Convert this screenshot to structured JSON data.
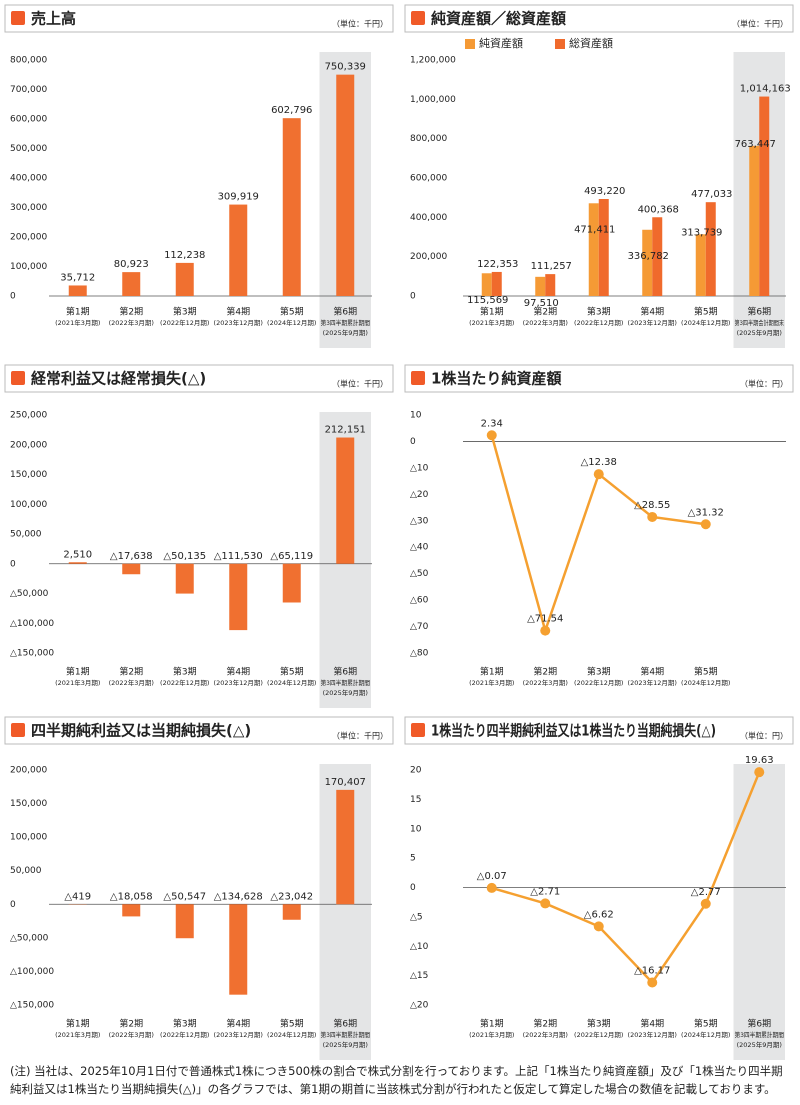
{
  "chart_data": [
    {
      "type": "bar",
      "title": "売上高",
      "unit": "（単位：千円）",
      "color": "#f07030",
      "highlight_last": true,
      "categories": [
        "第1期",
        "第2期",
        "第3期",
        "第4期",
        "第5期",
        "第6期"
      ],
      "subcategories": [
        [
          "(2021年3月期)"
        ],
        [
          "(2022年3月期)"
        ],
        [
          "(2022年12月期)"
        ],
        [
          "(2023年12月期)"
        ],
        [
          "(2024年12月期)"
        ],
        [
          "第3四半期累計期間",
          "(2025年9月期)"
        ]
      ],
      "values": [
        35712,
        80923,
        112238,
        309919,
        602796,
        750339
      ],
      "value_labels": [
        "35,712",
        "80,923",
        "112,238",
        "309,919",
        "602,796",
        "750,339"
      ],
      "ylim": [
        0,
        800000
      ],
      "yticks": [
        0,
        {
          "value": 100000,
          "label": "100,000"
        },
        {
          "value": 200000,
          "label": "200,000"
        },
        {
          "value": 300000,
          "label": "300,000"
        },
        {
          "value": 400000,
          "label": "400,000"
        },
        {
          "value": 500000,
          "label": "500,000"
        },
        {
          "value": 600000,
          "label": "600,000"
        },
        {
          "value": 700000,
          "label": "700,000"
        },
        {
          "value": 800000,
          "label": "800,000"
        }
      ]
    },
    {
      "type": "grouped_bar",
      "title": "純資産額／総資産額",
      "unit": "（単位：千円）",
      "highlight_last": true,
      "categories": [
        "第1期",
        "第2期",
        "第3期",
        "第4期",
        "第5期",
        "第6期"
      ],
      "subcategories": [
        [
          "(2021年3月期)"
        ],
        [
          "(2022年3月期)"
        ],
        [
          "(2022年12月期)"
        ],
        [
          "(2023年12月期)"
        ],
        [
          "(2024年12月期)"
        ],
        [
          "第3四半期会計期間末",
          "(2025年9月期)"
        ]
      ],
      "series": [
        {
          "name": "純資産額",
          "color": "#f59a35",
          "values": [
            115569,
            97510,
            471411,
            336782,
            313739,
            763447
          ],
          "value_labels": [
            "115,569",
            "97,510",
            "471,411",
            "336,782",
            "313,739",
            "763,447"
          ]
        },
        {
          "name": "総資産額",
          "color": "#f06a2c",
          "values": [
            122353,
            111257,
            493220,
            400368,
            477033,
            1014163
          ],
          "value_labels": [
            "122,353",
            "111,257",
            "493,220",
            "400,368",
            "477,033",
            "1,014,163"
          ]
        }
      ],
      "ylim": [
        0,
        1200000
      ],
      "yticks": [
        0,
        {
          "value": 200000,
          "label": "200,000"
        },
        {
          "value": 400000,
          "label": "400,000"
        },
        {
          "value": 600000,
          "label": "600,000"
        },
        {
          "value": 800000,
          "label": "800,000"
        },
        {
          "value": 1000000,
          "label": "1,000,000"
        },
        {
          "value": 1200000,
          "label": "1,200,000"
        }
      ]
    },
    {
      "type": "bar",
      "title": "経常利益又は経常損失(△)",
      "unit": "（単位：千円）",
      "color": "#f07030",
      "highlight_last": true,
      "categories": [
        "第1期",
        "第2期",
        "第3期",
        "第4期",
        "第5期",
        "第6期"
      ],
      "subcategories": [
        [
          "(2021年3月期)"
        ],
        [
          "(2022年3月期)"
        ],
        [
          "(2022年12月期)"
        ],
        [
          "(2023年12月期)"
        ],
        [
          "(2024年12月期)"
        ],
        [
          "第3四半期累計期間",
          "(2025年9月期)"
        ]
      ],
      "values": [
        2510,
        -17638,
        -50135,
        -111530,
        -65119,
        212151
      ],
      "value_labels": [
        "2,510",
        "△17,638",
        "△50,135",
        "△111,530",
        "△65,119",
        "212,151"
      ],
      "ylim": [
        -150000,
        250000
      ],
      "yticks": [
        {
          "value": -150000,
          "label": "△150,000"
        },
        {
          "value": -100000,
          "label": "△100,000"
        },
        {
          "value": -50000,
          "label": "△50,000"
        },
        0,
        {
          "value": 50000,
          "label": "50,000"
        },
        {
          "value": 100000,
          "label": "100,000"
        },
        {
          "value": 150000,
          "label": "150,000"
        },
        {
          "value": 200000,
          "label": "200,000"
        },
        {
          "value": 250000,
          "label": "250,000"
        }
      ]
    },
    {
      "type": "line",
      "title": "1株当たり純資産額",
      "unit": "（単位：円）",
      "color": "#f5a030",
      "highlight_last": false,
      "categories": [
        "第1期",
        "第2期",
        "第3期",
        "第4期",
        "第5期"
      ],
      "subcategories": [
        [
          "(2021年3月期)"
        ],
        [
          "(2022年3月期)"
        ],
        [
          "(2022年12月期)"
        ],
        [
          "(2023年12月期)"
        ],
        [
          "(2024年12月期)"
        ]
      ],
      "values": [
        2.34,
        -71.54,
        -12.38,
        -28.55,
        -31.32
      ],
      "value_labels": [
        "2.34",
        "△71.54",
        "△12.38",
        "△28.55",
        "△31.32"
      ],
      "ylim": [
        -80,
        10
      ],
      "yticks": [
        {
          "value": -80,
          "label": "△80"
        },
        {
          "value": -70,
          "label": "△70"
        },
        {
          "value": -60,
          "label": "△60"
        },
        {
          "value": -50,
          "label": "△50"
        },
        {
          "value": -40,
          "label": "△40"
        },
        {
          "value": -30,
          "label": "△30"
        },
        {
          "value": -20,
          "label": "△20"
        },
        {
          "value": -10,
          "label": "△10"
        },
        0,
        10
      ]
    },
    {
      "type": "bar",
      "title": "四半期純利益又は当期純損失(△)",
      "unit": "（単位：千円）",
      "color": "#f07030",
      "highlight_last": true,
      "categories": [
        "第1期",
        "第2期",
        "第3期",
        "第4期",
        "第5期",
        "第6期"
      ],
      "subcategories": [
        [
          "(2021年3月期)"
        ],
        [
          "(2022年3月期)"
        ],
        [
          "(2022年12月期)"
        ],
        [
          "(2023年12月期)"
        ],
        [
          "(2024年12月期)"
        ],
        [
          "第3四半期累計期間",
          "(2025年9月期)"
        ]
      ],
      "values": [
        -419,
        -18058,
        -50547,
        -134628,
        -23042,
        170407
      ],
      "value_labels": [
        "△419",
        "△18,058",
        "△50,547",
        "△134,628",
        "△23,042",
        "170,407"
      ],
      "ylim": [
        -150000,
        200000
      ],
      "yticks": [
        {
          "value": -150000,
          "label": "△150,000"
        },
        {
          "value": -100000,
          "label": "△100,000"
        },
        {
          "value": -50000,
          "label": "△50,000"
        },
        0,
        {
          "value": 50000,
          "label": "50,000"
        },
        {
          "value": 100000,
          "label": "100,000"
        },
        {
          "value": 150000,
          "label": "150,000"
        },
        {
          "value": 200000,
          "label": "200,000"
        }
      ]
    },
    {
      "type": "line",
      "title": "1株当たり四半期純利益又は1株当たり当期純損失(△)",
      "unit": "（単位：円）",
      "color": "#f5a030",
      "highlight_last": true,
      "categories": [
        "第1期",
        "第2期",
        "第3期",
        "第4期",
        "第5期",
        "第6期"
      ],
      "subcategories": [
        [
          "(2021年3月期)"
        ],
        [
          "(2022年3月期)"
        ],
        [
          "(2022年12月期)"
        ],
        [
          "(2023年12月期)"
        ],
        [
          "(2024年12月期)"
        ],
        [
          "第3四半期累計期間",
          "(2025年9月期)"
        ]
      ],
      "values": [
        -0.07,
        -2.71,
        -6.62,
        -16.17,
        -2.77,
        19.63
      ],
      "value_labels": [
        "△0.07",
        "△2.71",
        "△6.62",
        "△16.17",
        "△2.77",
        "19.63"
      ],
      "ylim": [
        -20,
        20
      ],
      "yticks": [
        {
          "value": -20,
          "label": "△20"
        },
        {
          "value": -15,
          "label": "△15"
        },
        {
          "value": -10,
          "label": "△10"
        },
        {
          "value": -5,
          "label": "△5"
        },
        0,
        5,
        10,
        15,
        20
      ]
    }
  ],
  "note": "(注) 当社は、2025年10月1日付で普通株式1株につき500株の割合で株式分割を行っております。上記「1株当たり純資産額」及び「1株当たり四半期純利益又は1株当たり当期純損失(△)」の各グラフでは、第1期の期首に当該株式分割が行われたと仮定して算定した場合の数値を記載しております。"
}
